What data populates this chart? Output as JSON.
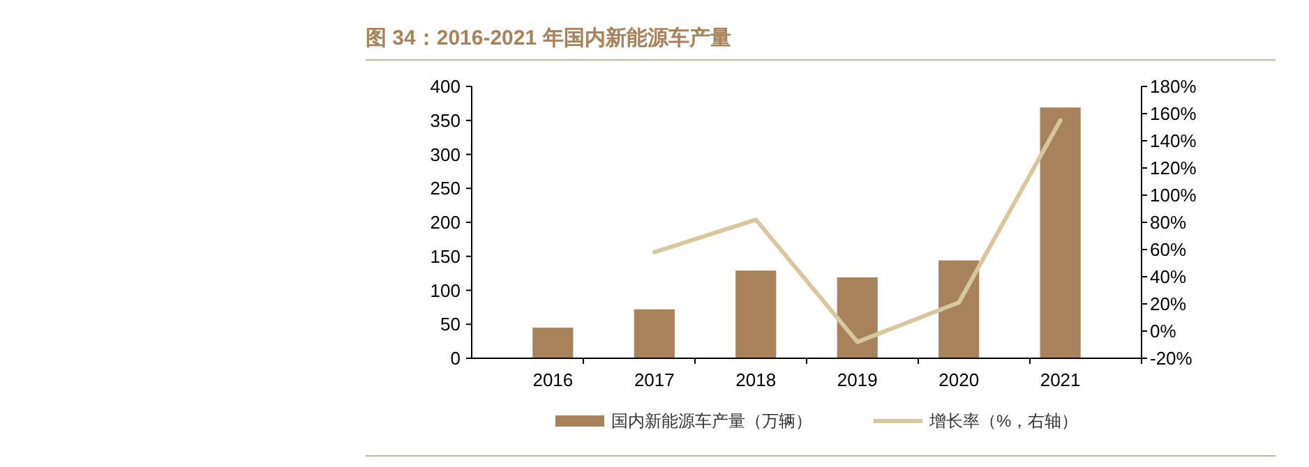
{
  "chart_data": {
    "type": "bar",
    "title": "图 34：2016-2021 年国内新能源车产量",
    "categories": [
      "2016",
      "2017",
      "2018",
      "2019",
      "2020",
      "2021"
    ],
    "series": [
      {
        "name": "国内新能源车产量（万辆）",
        "color": "#a8825a",
        "values": [
          45,
          72,
          129,
          119,
          144,
          369
        ]
      },
      {
        "name": "增长率（%，右轴）",
        "type": "line",
        "axis": "y2",
        "color": "#d8c79e",
        "values": [
          null,
          58,
          82,
          -8,
          21,
          155
        ]
      }
    ],
    "ylim": [
      0,
      400
    ],
    "yticks": [
      0,
      50,
      100,
      150,
      200,
      250,
      300,
      350,
      400
    ],
    "y2lim": [
      -20,
      180
    ],
    "y2ticks": [
      {
        "value": -20,
        "label": "-20%"
      },
      {
        "value": 0,
        "label": "0%"
      },
      {
        "value": 20,
        "label": "20%"
      },
      {
        "value": 40,
        "label": "40%"
      },
      {
        "value": 60,
        "label": "60%"
      },
      {
        "value": 80,
        "label": "80%"
      },
      {
        "value": 100,
        "label": "100%"
      },
      {
        "value": 120,
        "label": "120%"
      },
      {
        "value": 140,
        "label": "140%"
      },
      {
        "value": 160,
        "label": "160%"
      },
      {
        "value": 180,
        "label": "180%"
      }
    ],
    "legend": "bottom",
    "grid": false
  }
}
